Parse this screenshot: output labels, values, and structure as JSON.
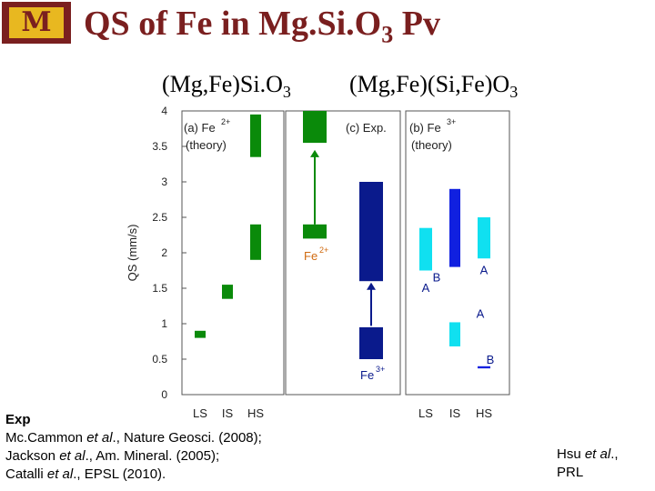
{
  "header": {
    "logo_letter": "M",
    "title_main": "QS of Fe in Mg.Si.O",
    "title_sub": "3",
    "title_tail": " Pv"
  },
  "subtitles": {
    "left_main": "(Mg,Fe)Si.O",
    "left_sub": "3",
    "right_main": "(Mg,Fe)(Si,Fe)O",
    "right_sub": "3"
  },
  "footer_left": {
    "heading": "Exp",
    "line1_a": "Mc.Cammon ",
    "line1_et": "et al",
    "line1_b": "., Nature Geosci. (2008);",
    "line2_a": "Jackson ",
    "line2_et": "et al",
    "line2_b": "., Am. Mineral. (2005);",
    "line3_a": "Catalli ",
    "line3_et": "et al",
    "line3_b": "., EPSL (2010)."
  },
  "footer_right": {
    "line1_a": "Hsu ",
    "line1_et": "et al",
    "line1_b": ".,",
    "line2": "PRL"
  },
  "chart_data": {
    "type": "bar",
    "ylabel": "QS (mm/s)",
    "ylim": [
      0,
      4
    ],
    "yticks": [
      "0",
      "0.5",
      "1",
      "1.5",
      "2",
      "2.5",
      "3",
      "3.5",
      "4"
    ],
    "colors": {
      "green": "#0a8a0a",
      "navy": "#0a1a8c",
      "blue": "#1020e0",
      "cyan": "#10e0f0",
      "label_green": "#d06a10"
    },
    "panels": [
      {
        "id": "a",
        "label_a": "(a) Fe",
        "label_sup": "2+",
        "label_b": "(theory)",
        "categories": [
          "LS",
          "IS",
          "HS"
        ],
        "bars": [
          {
            "cat": "LS",
            "low": 0.8,
            "high": 0.9,
            "color": "green"
          },
          {
            "cat": "IS",
            "low": 1.35,
            "high": 1.55,
            "color": "green"
          },
          {
            "cat": "HS",
            "low": 1.9,
            "high": 2.4,
            "color": "green"
          },
          {
            "cat": "HS",
            "low": 3.35,
            "high": 3.95,
            "color": "green"
          }
        ]
      },
      {
        "id": "c",
        "label_a": "(c) Exp.",
        "bars": [
          {
            "cat": "Fe2+",
            "low": 2.2,
            "high": 2.4,
            "color": "green"
          },
          {
            "cat": "Fe2+",
            "low": 3.55,
            "high": 4.0,
            "color": "green"
          },
          {
            "cat": "Fe3+",
            "low": 1.6,
            "high": 3.0,
            "color": "navy"
          },
          {
            "cat": "Fe3+",
            "low": 0.5,
            "high": 0.95,
            "color": "navy"
          }
        ],
        "annotations": [
          {
            "text": "Fe",
            "sup": "2+"
          },
          {
            "text": "Fe",
            "sup": "3+"
          }
        ]
      },
      {
        "id": "b",
        "label_a": "(b) Fe",
        "label_sup": "3+",
        "label_b": "(theory)",
        "categories": [
          "LS",
          "IS",
          "HS"
        ],
        "bars": [
          {
            "cat": "LS",
            "low": 1.75,
            "high": 2.35,
            "color": "cyan",
            "site": "A"
          },
          {
            "cat": "IS",
            "low": 1.8,
            "high": 2.9,
            "color": "blue",
            "site": "B"
          },
          {
            "cat": "IS",
            "low": 0.68,
            "high": 1.02,
            "color": "cyan",
            "site": "A"
          },
          {
            "cat": "HS",
            "low": 1.92,
            "high": 2.5,
            "color": "cyan",
            "site": "A"
          },
          {
            "cat": "HS",
            "low": 0.37,
            "high": 0.4,
            "color": "blue",
            "site": "B"
          }
        ],
        "site_labels": [
          "A",
          "B",
          "A",
          "A",
          "B"
        ]
      }
    ]
  }
}
